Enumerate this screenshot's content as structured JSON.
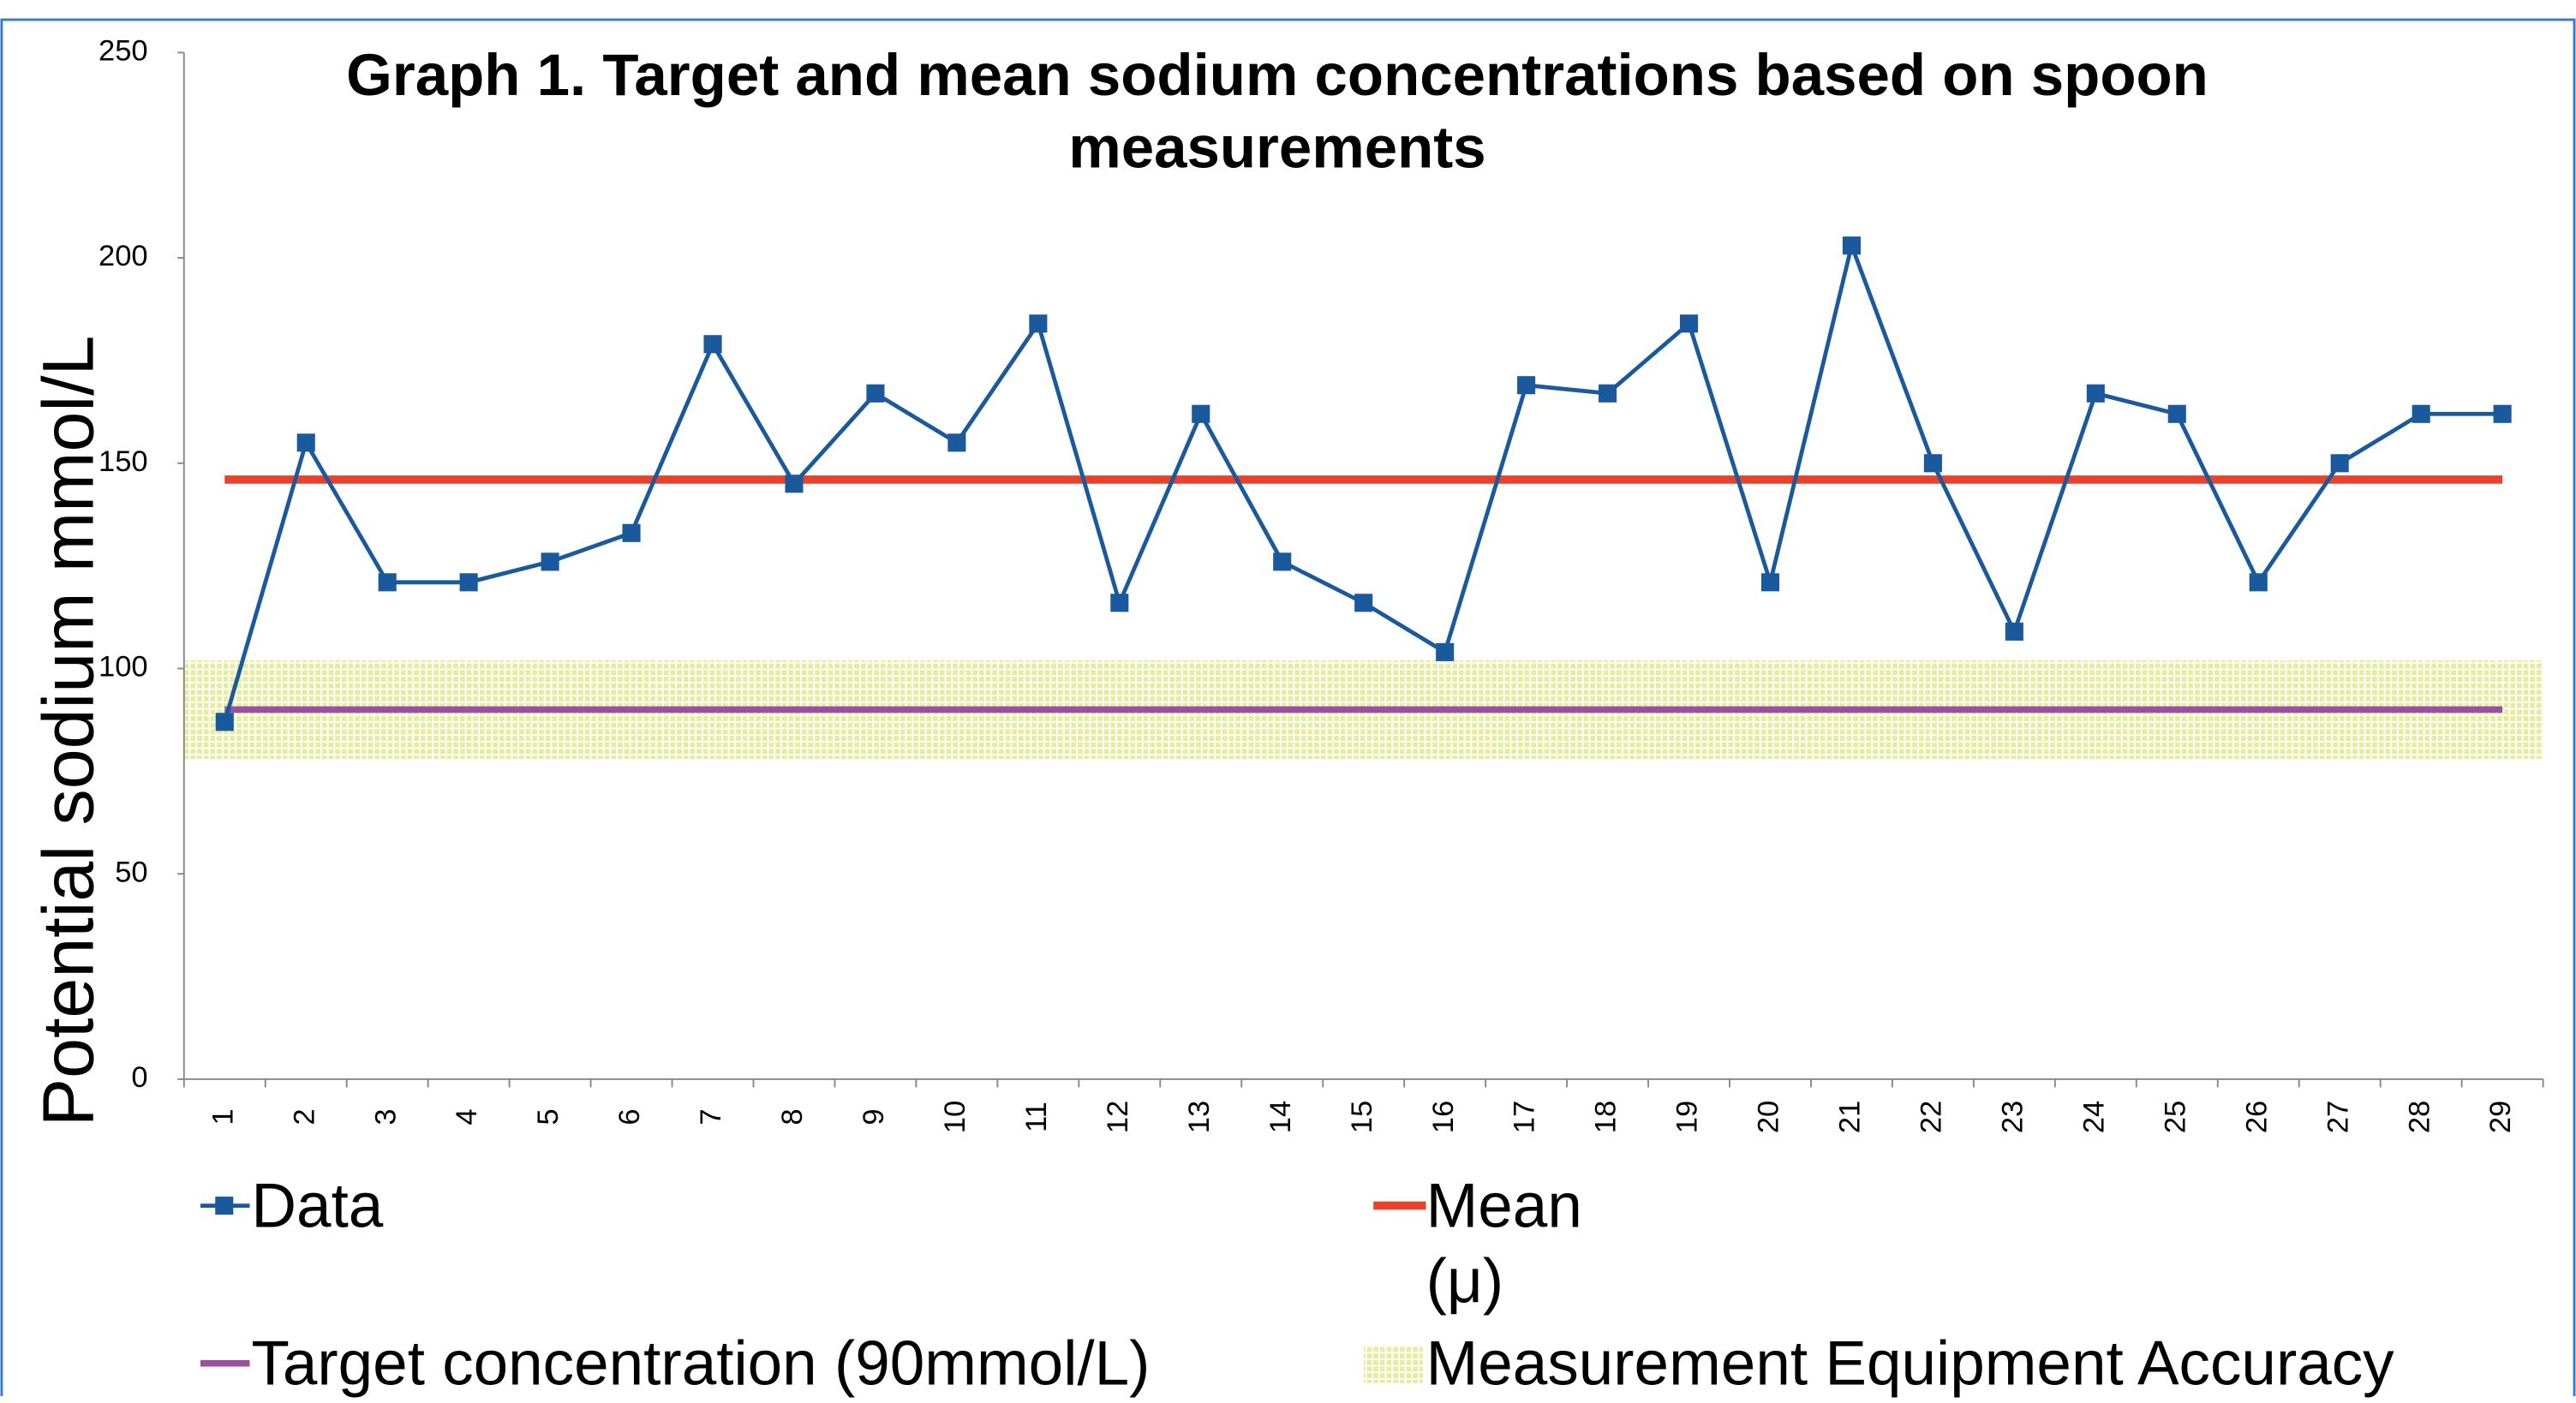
{
  "chart_data": {
    "type": "line",
    "title": "Graph 1. Target and mean sodium concentrations based on spoon measurements",
    "y_label": "Potential sodium mmol/L",
    "categories": [
      "1",
      "2",
      "3",
      "4",
      "5",
      "6",
      "7",
      "8",
      "9",
      "10",
      "11",
      "12",
      "13",
      "14",
      "15",
      "16",
      "17",
      "18",
      "19",
      "20",
      "21",
      "22",
      "23",
      "24",
      "25",
      "26",
      "27",
      "28",
      "29"
    ],
    "series": [
      {
        "name": "Data",
        "color": "#1a5a9c",
        "values": [
          87,
          155,
          121,
          121,
          126,
          133,
          179,
          145,
          167,
          155,
          184,
          116,
          162,
          126,
          116,
          104,
          169,
          167,
          184,
          121,
          203,
          150,
          109,
          167,
          162,
          121,
          150,
          162,
          162
        ]
      }
    ],
    "mean": {
      "name": "Mean (μ)",
      "value": 146,
      "color": "#e8412c"
    },
    "target": {
      "name": "Target concentration (90mmol/L)",
      "value": 90,
      "color": "#9b4fa0"
    },
    "band": {
      "name": "Measurement Equipment Accuracy",
      "range": [
        78,
        102
      ],
      "color": "#e4ee9c"
    },
    "ylim": [
      0,
      250
    ],
    "yticks": [
      0,
      50,
      100,
      150,
      200,
      250
    ]
  }
}
